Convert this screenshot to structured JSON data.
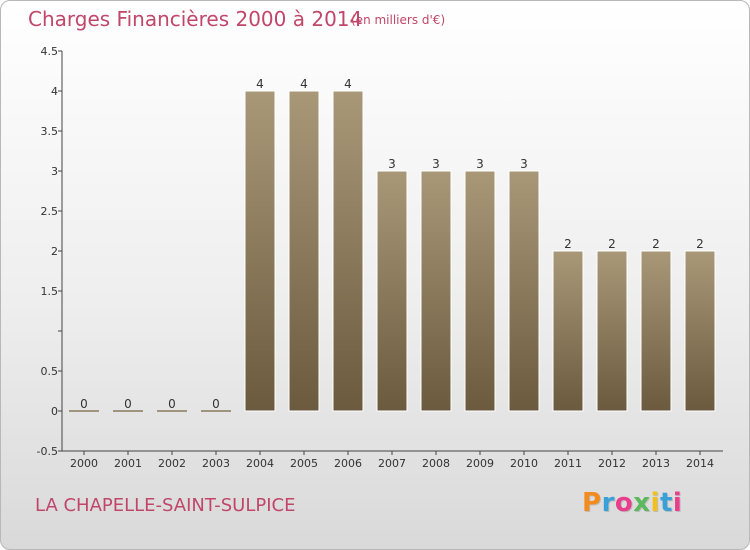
{
  "header": {
    "title": "Charges Financières 2000 à 2014",
    "subtitle": "(en milliers d'€)"
  },
  "footer": {
    "commune": "LA CHAPELLE-SAINT-SULPICE",
    "logo_text": "Proxiti",
    "logo_colors": [
      "#f28c1e",
      "#3aa0d8",
      "#e83e8c",
      "#5cb85c",
      "#f2c01e",
      "#3aa0d8",
      "#e83e8c"
    ]
  },
  "colors": {
    "title": "#c0466a",
    "bar_top": "#a99878",
    "bar_bottom": "#6b5a3e",
    "axis": "#444444",
    "grid": "#d0d0d0"
  },
  "chart_data": {
    "type": "bar",
    "title": "Charges Financières 2000 à 2014",
    "subtitle": "(en milliers d'€)",
    "categories": [
      "2000",
      "2001",
      "2002",
      "2003",
      "2004",
      "2005",
      "2006",
      "2007",
      "2008",
      "2009",
      "2010",
      "2011",
      "2012",
      "2013",
      "2014"
    ],
    "values": [
      0,
      0,
      0,
      0,
      4,
      4,
      4,
      3,
      3,
      3,
      3,
      2,
      2,
      2,
      2
    ],
    "data_labels": [
      "0",
      "0",
      "0",
      "0",
      "4",
      "4",
      "4",
      "3",
      "3",
      "3",
      "3",
      "2",
      "2",
      "2",
      "2"
    ],
    "ylim": [
      -0.5,
      4.5
    ],
    "yticks": [
      -0.5,
      0,
      0.5,
      1,
      1.5,
      2,
      2.5,
      3,
      3.5,
      4,
      4.5
    ],
    "ytick_labels": [
      "-0.5",
      "0",
      "0.5",
      "",
      "1.5",
      "2",
      "2.5",
      "3",
      "3.5",
      "4",
      "4.5"
    ],
    "grid": false,
    "legend": "none"
  }
}
